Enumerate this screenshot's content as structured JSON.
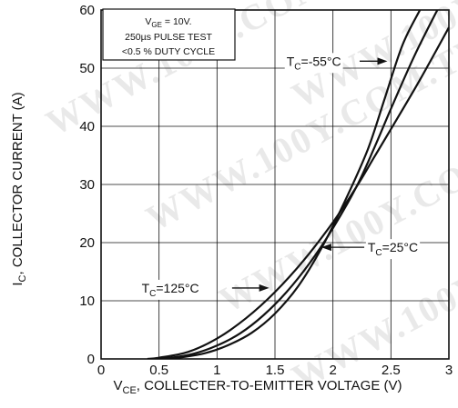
{
  "watermark": "WWW.100Y.COM.TW",
  "chart_data": {
    "type": "line",
    "title": "",
    "xlabel": {
      "main": "V",
      "sub": "CE",
      "rest": ", COLLECTER-TO-EMITTER VOLTAGE (V)"
    },
    "ylabel": {
      "main": "I",
      "sub": "C",
      "rest": ", COLLECTOR CURRENT (A)"
    },
    "xlim": [
      0,
      3
    ],
    "ylim": [
      0,
      60
    ],
    "xticks": [
      0,
      0.5,
      1,
      1.5,
      2,
      2.5,
      3
    ],
    "xtick_labels": [
      "0",
      "0.5",
      "1",
      "1.5",
      "2",
      "2.5",
      "3"
    ],
    "yticks": [
      0,
      10,
      20,
      30,
      40,
      50,
      60
    ],
    "ytick_labels": [
      "0",
      "10",
      "20",
      "30",
      "40",
      "50",
      "60"
    ],
    "grid": true,
    "conditions": {
      "line1_main": "V",
      "line1_sub": "GE",
      "line1_rest": " = 10V.",
      "line2": "250µs PULSE TEST",
      "line3": "<0.5 % DUTY CYCLE"
    },
    "series": [
      {
        "name_main": "T",
        "name_sub": "C",
        "name_rest": "=-55°C",
        "x": [
          0.55,
          0.7,
          0.9,
          1.1,
          1.3,
          1.5,
          1.7,
          1.9,
          2.1,
          2.3,
          2.45,
          2.6,
          2.75
        ],
        "y": [
          0,
          0.3,
          1.0,
          2.4,
          4.5,
          7.8,
          12.5,
          19.0,
          27.0,
          36.0,
          45.0,
          54.0,
          60.0
        ]
      },
      {
        "name_main": "T",
        "name_sub": "C",
        "name_rest": "=25°C",
        "x": [
          0.45,
          0.6,
          0.8,
          1.0,
          1.2,
          1.4,
          1.6,
          1.8,
          2.0,
          2.2,
          2.35,
          2.5,
          2.7,
          2.9
        ],
        "y": [
          0,
          0.2,
          0.9,
          2.3,
          4.4,
          7.5,
          11.5,
          16.5,
          22.5,
          29.5,
          36.0,
          43.0,
          52.0,
          60.0
        ]
      },
      {
        "name_main": "T",
        "name_sub": "C",
        "name_rest": "=125°C",
        "x": [
          0.4,
          0.5,
          0.75,
          1.0,
          1.25,
          1.5,
          1.75,
          2.0,
          2.2,
          2.35,
          2.5,
          2.75,
          3.0
        ],
        "y": [
          0,
          0.2,
          1.2,
          3.5,
          7.0,
          11.5,
          17.0,
          23.5,
          29.5,
          34.5,
          39.5,
          48.0,
          57.0
        ]
      }
    ],
    "annotations": [
      {
        "series": 0,
        "label_at": [
          1.6,
          51.2
        ],
        "line_to": [
          2.23,
          51.2
        ],
        "arrow_at": [
          2.47,
          51.2
        ],
        "anchor": "start"
      },
      {
        "series": 1,
        "label_at": [
          2.3,
          19.2
        ],
        "line_to": [
          2.27,
          19.2
        ],
        "arrow_at": [
          1.9,
          19.2
        ],
        "anchor": "start"
      },
      {
        "series": 2,
        "label_at": [
          0.35,
          12.2
        ],
        "line_to": [
          1.13,
          12.2
        ],
        "arrow_at": [
          1.45,
          12.2
        ],
        "anchor": "start"
      }
    ]
  }
}
